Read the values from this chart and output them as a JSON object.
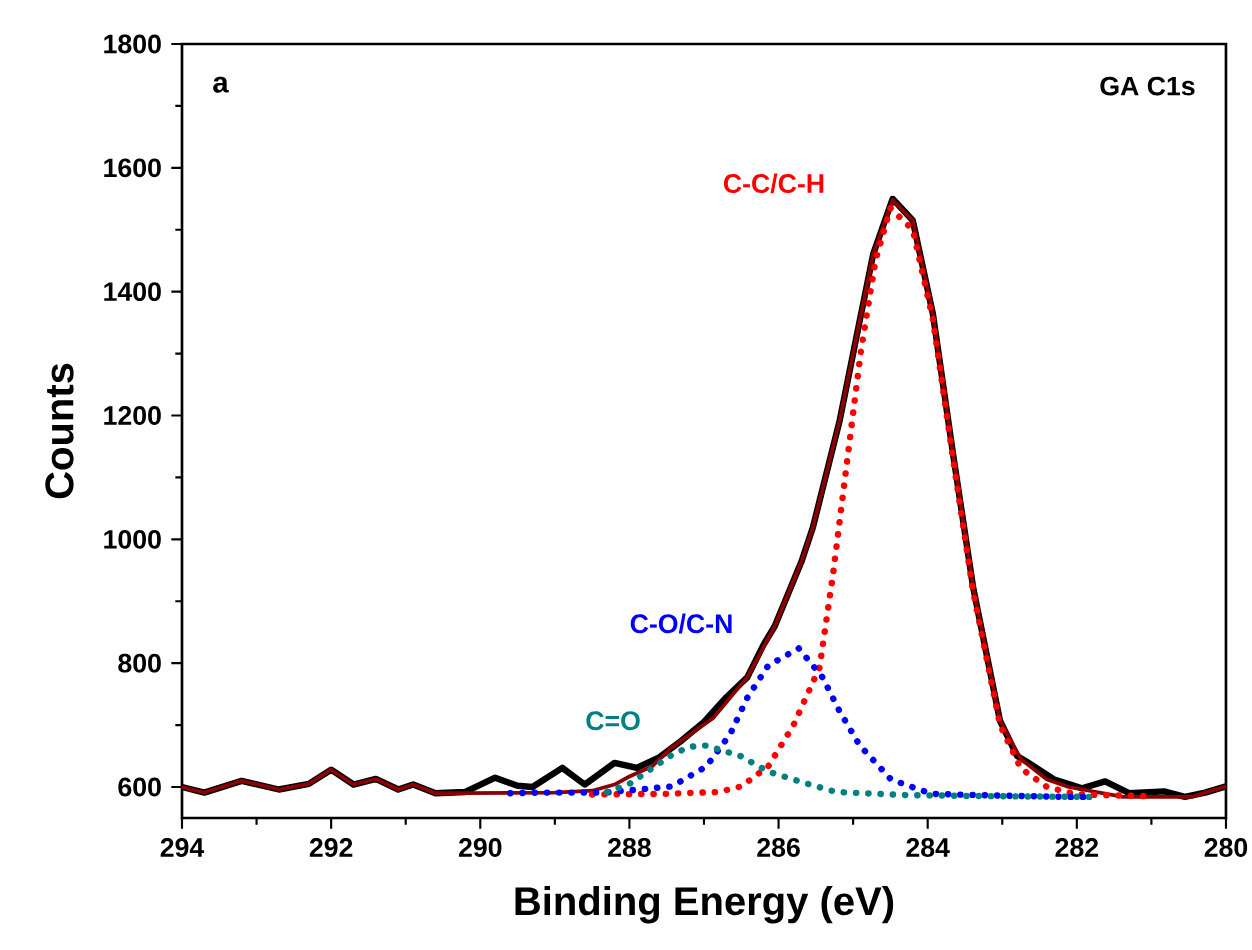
{
  "chart_data": {
    "type": "line",
    "xlabel": "Binding Energy (eV)",
    "ylabel": "Counts",
    "annotations": [
      "a",
      "GA C1s"
    ],
    "xlim": [
      294,
      280
    ],
    "xticks": [
      294,
      292,
      290,
      288,
      286,
      284,
      282,
      280
    ],
    "ylim": [
      550,
      1800
    ],
    "yticks": [
      600,
      800,
      1000,
      1200,
      1400,
      1600,
      1800
    ],
    "grid": false,
    "series": [
      {
        "color": "#000000",
        "line_style": "solid",
        "x": [
          294,
          293.7,
          293.2,
          292.7,
          292.3,
          292.0,
          291.7,
          291.4,
          291.1,
          290.9,
          290.6,
          290.2,
          289.8,
          289.5,
          289.3,
          288.9,
          288.6,
          288.2,
          287.9,
          287.6,
          287.3,
          287.0,
          286.7,
          286.42,
          286.2,
          286.05,
          285.69,
          285.54,
          285.18,
          284.91,
          284.73,
          284.47,
          284.2,
          283.93,
          283.66,
          283.39,
          283.03,
          282.8,
          282.66,
          282.3,
          281.93,
          281.62,
          281.3,
          280.83,
          280.55,
          280.28,
          280
        ],
        "values": [
          600,
          591,
          610,
          596,
          605,
          628,
          604,
          613,
          596,
          604,
          590,
          592,
          615,
          602,
          600,
          631,
          604,
          639,
          631,
          648,
          675,
          705,
          745,
          777,
          830,
          860,
          965,
          1019,
          1192,
          1354,
          1461,
          1550,
          1515,
          1364,
          1138,
          922,
          707,
          650,
          640,
          612,
          598,
          609,
          590,
          593,
          584,
          591,
          601
        ]
      },
      {
        "color": "#8b0000",
        "line_style": "solid",
        "x": [
          294,
          293.7,
          293.2,
          292.7,
          292.3,
          292.0,
          291.7,
          291.4,
          291.1,
          290.9,
          290.6,
          290.2,
          289.0,
          288.5,
          288.2,
          288.0,
          287.7,
          287.43,
          286.88,
          286.42,
          286.05,
          285.69,
          285.54,
          285.18,
          284.91,
          284.73,
          284.47,
          284.2,
          283.93,
          283.66,
          283.39,
          283.03,
          282.75,
          282.4,
          282.11,
          281.38,
          280.46,
          280.28,
          280
        ],
        "values": [
          600,
          591,
          610,
          596,
          605,
          628,
          604,
          613,
          596,
          604,
          590,
          590,
          591,
          594,
          604,
          617,
          633,
          664,
          711,
          777,
          860,
          965,
          1019,
          1192,
          1354,
          1461,
          1548,
          1515,
          1364,
          1138,
          922,
          707,
          645,
          612,
          600,
          584,
          584,
          591,
          601
        ]
      },
      {
        "name": "C-C/C-H",
        "color": "#ff0000",
        "line_style": "dotted",
        "x": [
          288.5,
          287.5,
          286.8,
          286.5,
          286.14,
          285.8,
          285.45,
          285.27,
          285.09,
          284.9,
          284.7,
          284.5,
          284.2,
          283.93,
          283.66,
          283.39,
          283.03,
          282.75,
          282.4,
          282.0,
          281.0
        ],
        "values": [
          588,
          589,
          592,
          601,
          633,
          700,
          793,
          943,
          1117,
          1300,
          1450,
          1535,
          1500,
          1355,
          1130,
          915,
          700,
          630,
          600,
          588,
          585
        ]
      },
      {
        "name": "C-O/C-N",
        "color": "#0000ff",
        "line_style": "dotted",
        "x": [
          289.6,
          289.17,
          288.34,
          287.43,
          286.97,
          286.65,
          286.42,
          286.14,
          285.73,
          285.41,
          285.18,
          284.91,
          284.49,
          283.95,
          283.0,
          282.11,
          281.8
        ],
        "values": [
          590,
          591,
          591,
          601,
          633,
          685,
          744,
          796,
          824,
          777,
          722,
          667,
          612,
          589,
          586,
          584,
          584
        ]
      },
      {
        "name": "C=O",
        "color": "#008080",
        "line_style": "dotted",
        "x": [
          288.3,
          288.0,
          287.7,
          287.43,
          287.2,
          286.97,
          286.51,
          286.14,
          285.69,
          285.23,
          284.31,
          283.0,
          281.8
        ],
        "values": [
          592,
          605,
          630,
          652,
          665,
          667,
          650,
          625,
          608,
          592,
          587,
          585,
          584
        ]
      }
    ]
  }
}
